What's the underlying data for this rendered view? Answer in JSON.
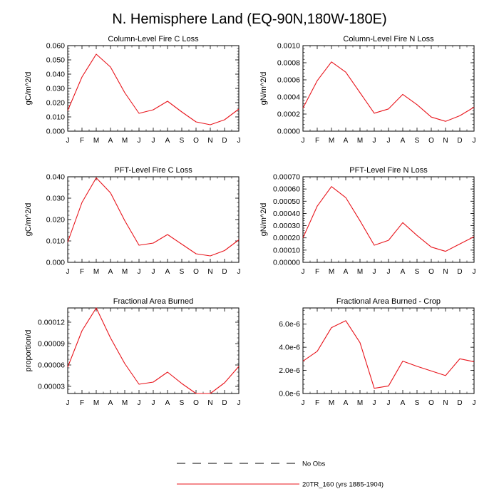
{
  "page_title": "N. Hemisphere Land (EQ-90N,180W-180E)",
  "legend": {
    "items": [
      {
        "label": "No Obs",
        "style": "dashed",
        "color": "#000000"
      },
      {
        "label": "20TR_160 (yrs 1885-1904)",
        "style": "solid",
        "color": "#e8141b"
      }
    ]
  },
  "chart_data": [
    {
      "type": "line",
      "title": "Column-Level Fire C Loss",
      "ylabel": "gC/m^2/d",
      "categories": [
        "J",
        "F",
        "M",
        "A",
        "M",
        "J",
        "J",
        "A",
        "S",
        "O",
        "N",
        "D",
        "J"
      ],
      "ylim": [
        0,
        0.06
      ],
      "yticks": [
        0,
        0.01,
        0.02,
        0.03,
        0.04,
        0.05,
        0.06
      ],
      "ytick_labels": [
        "0.000",
        "0.010",
        "0.020",
        "0.030",
        "0.040",
        "0.050",
        "0.060"
      ],
      "series": [
        {
          "name": "20TR_160 (yrs 1885-1904)",
          "values": [
            0.0145,
            0.038,
            0.054,
            0.045,
            0.027,
            0.0125,
            0.015,
            0.021,
            0.0135,
            0.0065,
            0.0045,
            0.008,
            0.0155
          ]
        }
      ]
    },
    {
      "type": "line",
      "title": "Column-Level Fire N Loss",
      "ylabel": "gN/m^2/d",
      "categories": [
        "J",
        "F",
        "M",
        "A",
        "M",
        "J",
        "J",
        "A",
        "S",
        "O",
        "N",
        "D",
        "J"
      ],
      "ylim": [
        0,
        0.001
      ],
      "yticks": [
        0,
        0.0002,
        0.0004,
        0.0006,
        0.0008,
        0.001
      ],
      "ytick_labels": [
        "0.0000",
        "0.0002",
        "0.0004",
        "0.0006",
        "0.0008",
        "0.0010"
      ],
      "series": [
        {
          "name": "20TR_160 (yrs 1885-1904)",
          "values": [
            0.00027,
            0.00059,
            0.00081,
            0.00069,
            0.00045,
            0.00021,
            0.00026,
            0.00043,
            0.00031,
            0.000165,
            0.000115,
            0.00018,
            0.00028
          ]
        }
      ]
    },
    {
      "type": "line",
      "title": "PFT-Level Fire C Loss",
      "ylabel": "gC/m^2/d",
      "categories": [
        "J",
        "F",
        "M",
        "A",
        "M",
        "J",
        "J",
        "A",
        "S",
        "O",
        "N",
        "D",
        "J"
      ],
      "ylim": [
        0,
        0.04
      ],
      "yticks": [
        0,
        0.01,
        0.02,
        0.03,
        0.04
      ],
      "ytick_labels": [
        "0.000",
        "0.010",
        "0.020",
        "0.030",
        "0.040"
      ],
      "series": [
        {
          "name": "20TR_160 (yrs 1885-1904)",
          "values": [
            0.0095,
            0.028,
            0.0395,
            0.0325,
            0.0195,
            0.008,
            0.009,
            0.013,
            0.0085,
            0.004,
            0.003,
            0.0055,
            0.0105
          ]
        }
      ]
    },
    {
      "type": "line",
      "title": "PFT-Level Fire N Loss",
      "ylabel": "gN/m^2/d",
      "categories": [
        "J",
        "F",
        "M",
        "A",
        "M",
        "J",
        "J",
        "A",
        "S",
        "O",
        "N",
        "D",
        "J"
      ],
      "ylim": [
        0,
        0.0007
      ],
      "yticks": [
        0,
        0.0001,
        0.0002,
        0.0003,
        0.0004,
        0.0005,
        0.0006,
        0.0007
      ],
      "ytick_labels": [
        "0.00000",
        "0.00010",
        "0.00020",
        "0.00030",
        "0.00040",
        "0.00050",
        "0.00060",
        "0.00070"
      ],
      "series": [
        {
          "name": "20TR_160 (yrs 1885-1904)",
          "values": [
            0.0002,
            0.00046,
            0.00062,
            0.00053,
            0.00034,
            0.00014,
            0.00018,
            0.000325,
            0.00022,
            0.000125,
            9e-05,
            0.00015,
            0.00021
          ]
        }
      ]
    },
    {
      "type": "line",
      "title": "Fractional Area Burned",
      "ylabel": "proportion/d",
      "categories": [
        "J",
        "F",
        "M",
        "A",
        "M",
        "J",
        "J",
        "A",
        "S",
        "O",
        "N",
        "D",
        "J"
      ],
      "ylim": [
        2e-05,
        0.00014
      ],
      "yticks": [
        3e-05,
        6e-05,
        9e-05,
        0.00012
      ],
      "ytick_labels": [
        "0.00003",
        "0.00006",
        "0.00009",
        "0.00012"
      ],
      "series": [
        {
          "name": "20TR_160 (yrs 1885-1904)",
          "values": [
            5.7e-05,
            0.000108,
            0.00014,
            9.8e-05,
            6.2e-05,
            3.3e-05,
            3.6e-05,
            5e-05,
            3.4e-05,
            2e-05,
            2e-05,
            3.5e-05,
            5.8e-05
          ]
        }
      ]
    },
    {
      "type": "line",
      "title": "Fractional Area Burned - Crop",
      "ylabel": "",
      "categories": [
        "J",
        "F",
        "M",
        "A",
        "M",
        "J",
        "J",
        "A",
        "S",
        "O",
        "N",
        "D",
        "J"
      ],
      "ylim": [
        0,
        7.4e-06
      ],
      "yticks": [
        0,
        2e-06,
        4e-06,
        6e-06
      ],
      "ytick_labels": [
        "0.0e-6",
        "2.0e-6",
        "4.0e-6",
        "6.0e-6"
      ],
      "series": [
        {
          "name": "20TR_160 (yrs 1885-1904)",
          "values": [
            2.8e-06,
            3.65e-06,
            5.7e-06,
            6.3e-06,
            4.4e-06,
            4.5e-07,
            6.5e-07,
            2.8e-06,
            2.35e-06,
            1.95e-06,
            1.55e-06,
            3e-06,
            2.75e-06
          ]
        }
      ]
    }
  ]
}
